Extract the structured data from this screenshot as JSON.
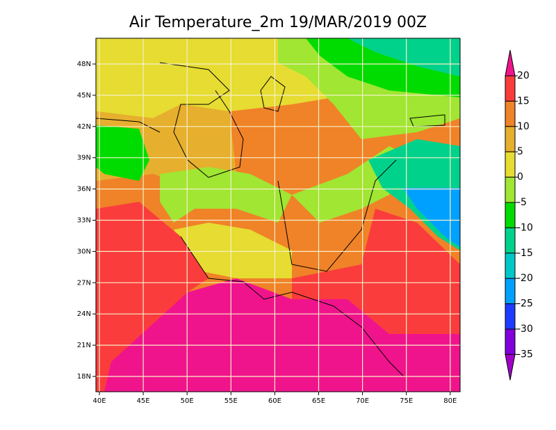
{
  "title": "Air Temperature_2m 19/MAR/2019 00Z",
  "lat_labels": [
    "48N",
    "45N",
    "42N",
    "39N",
    "36N",
    "33N",
    "30N",
    "27N",
    "24N",
    "21N",
    "18N"
  ],
  "lon_labels": [
    "40E",
    "45E",
    "50E",
    "55E",
    "60E",
    "65E",
    "70E",
    "75E",
    "80E"
  ],
  "colorbar": {
    "levels": [
      20,
      15,
      10,
      5,
      0,
      -5,
      -10,
      -15,
      -20,
      -25,
      -30,
      -35
    ],
    "colors": [
      "#f0148c",
      "#fa3c3c",
      "#f08228",
      "#e6af2d",
      "#e6dc32",
      "#a0e632",
      "#00dc00",
      "#00d28c",
      "#00c8c8",
      "#00a0ff",
      "#1e3cff",
      "#8200dc",
      "#a000c8"
    ]
  }
}
